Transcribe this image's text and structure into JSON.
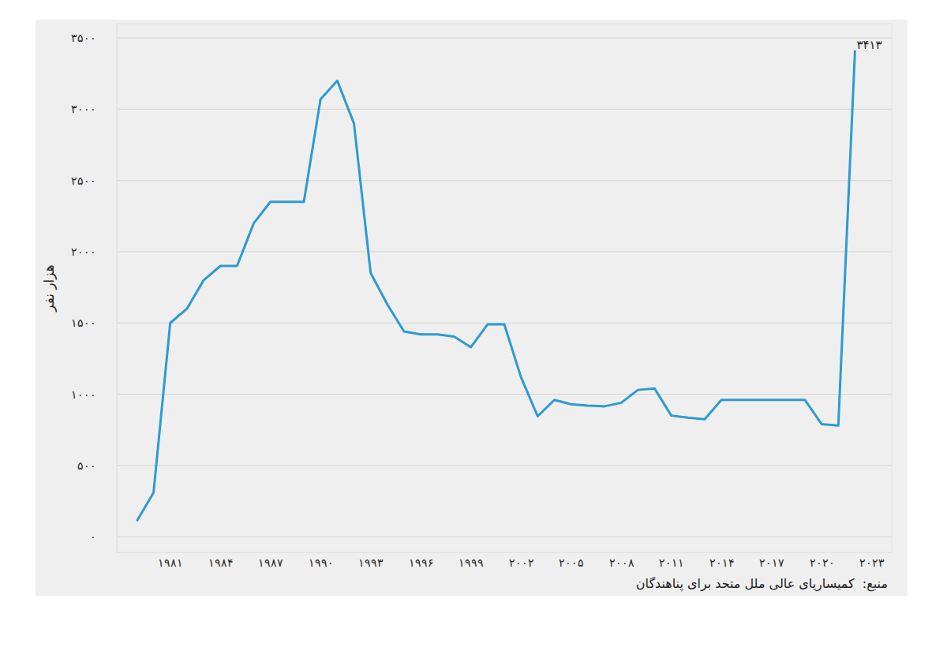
{
  "chart_data": {
    "type": "line",
    "ylabel": "هزار نفر",
    "source": "منبع:  کمیساریای عالی ملل متحد برای پناهندگان",
    "x": [
      1979,
      1980,
      1981,
      1982,
      1983,
      1984,
      1985,
      1986,
      1987,
      1988,
      1989,
      1990,
      1991,
      1992,
      1993,
      1994,
      1995,
      1996,
      1997,
      1998,
      1999,
      2000,
      2001,
      2002,
      2003,
      2004,
      2005,
      2006,
      2007,
      2008,
      2009,
      2010,
      2011,
      2012,
      2013,
      2014,
      2015,
      2016,
      2017,
      2018,
      2019,
      2020,
      2021,
      2022
    ],
    "values": [
      110,
      310,
      1500,
      1600,
      1800,
      1900,
      1900,
      2200,
      2350,
      2350,
      2350,
      3070,
      3200,
      2900,
      1850,
      1630,
      1440,
      1420,
      1420,
      1405,
      1330,
      1490,
      1490,
      1120,
      845,
      960,
      930,
      920,
      915,
      940,
      1030,
      1040,
      850,
      835,
      825,
      960,
      960,
      960,
      960,
      960,
      960,
      790,
      780,
      3413
    ],
    "color": "#2e9bd0",
    "xlim": [
      1977.8,
      2024.2
    ],
    "xticks": [
      {
        "value": 1981,
        "label": "۱۹۸۱"
      },
      {
        "value": 1984,
        "label": "۱۹۸۴"
      },
      {
        "value": 1987,
        "label": "۱۹۸۷"
      },
      {
        "value": 1990,
        "label": "۱۹۹۰"
      },
      {
        "value": 1993,
        "label": "۱۹۹۳"
      },
      {
        "value": 1996,
        "label": "۱۹۹۶"
      },
      {
        "value": 1999,
        "label": "۱۹۹۹"
      },
      {
        "value": 2002,
        "label": "۲۰۰۲"
      },
      {
        "value": 2005,
        "label": "۲۰۰۵"
      },
      {
        "value": 2008,
        "label": "۲۰۰۸"
      },
      {
        "value": 2011,
        "label": "۲۰۱۱"
      },
      {
        "value": 2014,
        "label": "۲۰۱۴"
      },
      {
        "value": 2017,
        "label": "۲۰۱۷"
      },
      {
        "value": 2020,
        "label": "۲۰۲۰"
      },
      {
        "value": 2023,
        "label": "۲۰۲۳"
      }
    ],
    "ylim": [
      -110,
      3600
    ],
    "yticks": [
      {
        "value": 0,
        "label": "۰"
      },
      {
        "value": 500,
        "label": "۵۰۰"
      },
      {
        "value": 1000,
        "label": "۱۰۰۰"
      },
      {
        "value": 1500,
        "label": "۱۵۰۰"
      },
      {
        "value": 2000,
        "label": "۲۰۰۰"
      },
      {
        "value": 2500,
        "label": "۲۵۰۰"
      },
      {
        "value": 3000,
        "label": "۳۰۰۰"
      },
      {
        "value": 3500,
        "label": "۳۵۰۰"
      }
    ],
    "grid": true,
    "annotations": [
      {
        "text": "۳۴۱۳",
        "x": 2022,
        "y": 3413
      }
    ]
  }
}
